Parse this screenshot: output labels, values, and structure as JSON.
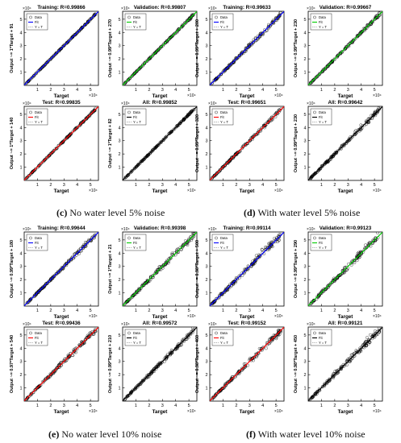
{
  "figure": {
    "captions": [
      {
        "letter": "(c)",
        "text": " No water level 5% noise"
      },
      {
        "letter": "(d)",
        "text": " With water level 5% noise"
      },
      {
        "letter": "(e)",
        "text": " No water level 10% noise"
      },
      {
        "letter": "(f)",
        "text": " With water level 10% noise"
      }
    ],
    "axis_multiplier": "×10⁴",
    "xlabel": "Target",
    "legend_labels": [
      "Data",
      "Fit",
      "Y = T"
    ],
    "colors": {
      "training": "#0000ff",
      "validation": "#00cc00",
      "test": "#ff0000",
      "all": "#000000",
      "ideal": "#888888",
      "data": "#000000"
    }
  },
  "chart_data": [
    {
      "type": "scatter",
      "group": "c",
      "title": "Training: R=0.99866",
      "ylabel": "Output ~= 1*Target + 91",
      "fit_color": "training",
      "noise": 0.025,
      "xlim": [
        0,
        5.6
      ],
      "ylim": [
        0,
        5.6
      ],
      "xticks": [
        1,
        2,
        3,
        4,
        5
      ],
      "yticks": [
        1,
        2,
        3,
        4,
        5
      ],
      "grid": false,
      "legend": "top-left"
    },
    {
      "type": "scatter",
      "group": "c",
      "title": "Validation: R=0.99807",
      "ylabel": "Output ~= 0.99*Target + 270",
      "fit_color": "validation",
      "noise": 0.04,
      "xlim": [
        0,
        5.6
      ],
      "ylim": [
        0,
        5.6
      ],
      "xticks": [
        1,
        2,
        3,
        4,
        5
      ],
      "yticks": [
        1,
        2,
        3,
        4,
        5
      ],
      "grid": false,
      "legend": "top-left"
    },
    {
      "type": "scatter",
      "group": "c",
      "title": "Test: R=0.99835",
      "ylabel": "Output ~= 1*Target + 140",
      "fit_color": "test",
      "noise": 0.035,
      "xlim": [
        0,
        5.6
      ],
      "ylim": [
        0,
        5.6
      ],
      "xticks": [
        1,
        2,
        3,
        4,
        5
      ],
      "yticks": [
        1,
        2,
        3,
        4,
        5
      ],
      "grid": false,
      "legend": "top-left"
    },
    {
      "type": "scatter",
      "group": "c",
      "title": "All: R=0.99852",
      "ylabel": "Output ~= 1*Target + 82",
      "fit_color": "all",
      "noise": 0.03,
      "xlim": [
        0,
        5.6
      ],
      "ylim": [
        0,
        5.6
      ],
      "xticks": [
        1,
        2,
        3,
        4,
        5
      ],
      "yticks": [
        1,
        2,
        3,
        4,
        5
      ],
      "grid": false,
      "legend": "top-left"
    },
    {
      "type": "scatter",
      "group": "d",
      "title": "Training: R=0.99633",
      "ylabel": "Output ~= 0.99*Target + 200",
      "fit_color": "training",
      "noise": 0.08,
      "xlim": [
        0,
        5.6
      ],
      "ylim": [
        0,
        5.6
      ],
      "xticks": [
        1,
        2,
        3,
        4,
        5
      ],
      "yticks": [
        1,
        2,
        3,
        4,
        5
      ],
      "grid": false,
      "legend": "top-left"
    },
    {
      "type": "scatter",
      "group": "d",
      "title": "Validation: R=0.99667",
      "ylabel": "Output ~= 0.99*Target + 230",
      "fit_color": "validation",
      "noise": 0.07,
      "xlim": [
        0,
        5.6
      ],
      "ylim": [
        0,
        5.6
      ],
      "xticks": [
        1,
        2,
        3,
        4,
        5
      ],
      "yticks": [
        1,
        2,
        3,
        4,
        5
      ],
      "grid": false,
      "legend": "top-left"
    },
    {
      "type": "scatter",
      "group": "d",
      "title": "Test: R=0.99651",
      "ylabel": "Output ~= 0.99*Target + 320",
      "fit_color": "test",
      "noise": 0.07,
      "xlim": [
        0,
        5.6
      ],
      "ylim": [
        0,
        5.6
      ],
      "xticks": [
        1,
        2,
        3,
        4,
        5
      ],
      "yticks": [
        1,
        2,
        3,
        4,
        5
      ],
      "grid": false,
      "legend": "top-left"
    },
    {
      "type": "scatter",
      "group": "d",
      "title": "All: R=0.99642",
      "ylabel": "Output ~= 0.99*Target + 230",
      "fit_color": "all",
      "noise": 0.08,
      "xlim": [
        0,
        5.6
      ],
      "ylim": [
        0,
        5.6
      ],
      "xticks": [
        1,
        2,
        3,
        4,
        5
      ],
      "yticks": [
        1,
        2,
        3,
        4,
        5
      ],
      "grid": false,
      "legend": "top-left"
    },
    {
      "type": "scatter",
      "group": "e",
      "title": "Training: R=0.99644",
      "ylabel": "Output ~= 0.99*Target + 180",
      "fit_color": "training",
      "noise": 0.08,
      "xlim": [
        0,
        5.6
      ],
      "ylim": [
        0,
        5.6
      ],
      "xticks": [
        1,
        2,
        3,
        4,
        5
      ],
      "yticks": [
        1,
        2,
        3,
        4,
        5
      ],
      "grid": false,
      "legend": "top-left"
    },
    {
      "type": "scatter",
      "group": "e",
      "title": "Validation: R=0.99398",
      "ylabel": "Output ~= 1*Target + 21",
      "fit_color": "validation",
      "noise": 0.1,
      "xlim": [
        0,
        5.6
      ],
      "ylim": [
        0,
        5.6
      ],
      "xticks": [
        1,
        2,
        3,
        4,
        5
      ],
      "yticks": [
        1,
        2,
        3,
        4,
        5
      ],
      "grid": false,
      "legend": "top-left"
    },
    {
      "type": "scatter",
      "group": "e",
      "title": "Test: R=0.99436",
      "ylabel": "Output ~= 0.97*Target + 540",
      "fit_color": "test",
      "noise": 0.1,
      "xlim": [
        0,
        5.6
      ],
      "ylim": [
        0,
        5.6
      ],
      "xticks": [
        1,
        2,
        3,
        4,
        5
      ],
      "yticks": [
        1,
        2,
        3,
        4,
        5
      ],
      "grid": false,
      "legend": "top-left"
    },
    {
      "type": "scatter",
      "group": "e",
      "title": "All: R=0.99572",
      "ylabel": "Output ~= 0.99*Target + 210",
      "fit_color": "all",
      "noise": 0.09,
      "xlim": [
        0,
        5.6
      ],
      "ylim": [
        0,
        5.6
      ],
      "xticks": [
        1,
        2,
        3,
        4,
        5
      ],
      "yticks": [
        1,
        2,
        3,
        4,
        5
      ],
      "grid": false,
      "legend": "top-left"
    },
    {
      "type": "scatter",
      "group": "f",
      "title": "Training: R=0.99114",
      "ylabel": "Output ~= 0.98*Target + 500",
      "fit_color": "training",
      "noise": 0.13,
      "xlim": [
        0,
        5.6
      ],
      "ylim": [
        0,
        5.6
      ],
      "xticks": [
        1,
        2,
        3,
        4,
        5
      ],
      "yticks": [
        1,
        2,
        3,
        4,
        5
      ],
      "grid": false,
      "legend": "top-left"
    },
    {
      "type": "scatter",
      "group": "f",
      "title": "Validation: R=0.99123",
      "ylabel": "Output ~= 0.99*Target + 290",
      "fit_color": "validation",
      "noise": 0.13,
      "xlim": [
        0,
        5.6
      ],
      "ylim": [
        0,
        5.6
      ],
      "xticks": [
        1,
        2,
        3,
        4,
        5
      ],
      "yticks": [
        1,
        2,
        3,
        4,
        5
      ],
      "grid": false,
      "legend": "top-left"
    },
    {
      "type": "scatter",
      "group": "f",
      "title": "Test: R=0.99152",
      "ylabel": "Output ~= 0.98*Target + 460",
      "fit_color": "test",
      "noise": 0.12,
      "xlim": [
        0,
        5.6
      ],
      "ylim": [
        0,
        5.6
      ],
      "xticks": [
        1,
        2,
        3,
        4,
        5
      ],
      "yticks": [
        1,
        2,
        3,
        4,
        5
      ],
      "grid": false,
      "legend": "top-left"
    },
    {
      "type": "scatter",
      "group": "f",
      "title": "All: R=0.99121",
      "ylabel": "Output ~= 0.98*Target + 450",
      "fit_color": "all",
      "noise": 0.13,
      "xlim": [
        0,
        5.6
      ],
      "ylim": [
        0,
        5.6
      ],
      "xticks": [
        1,
        2,
        3,
        4,
        5
      ],
      "yticks": [
        1,
        2,
        3,
        4,
        5
      ],
      "grid": false,
      "legend": "top-left"
    }
  ]
}
